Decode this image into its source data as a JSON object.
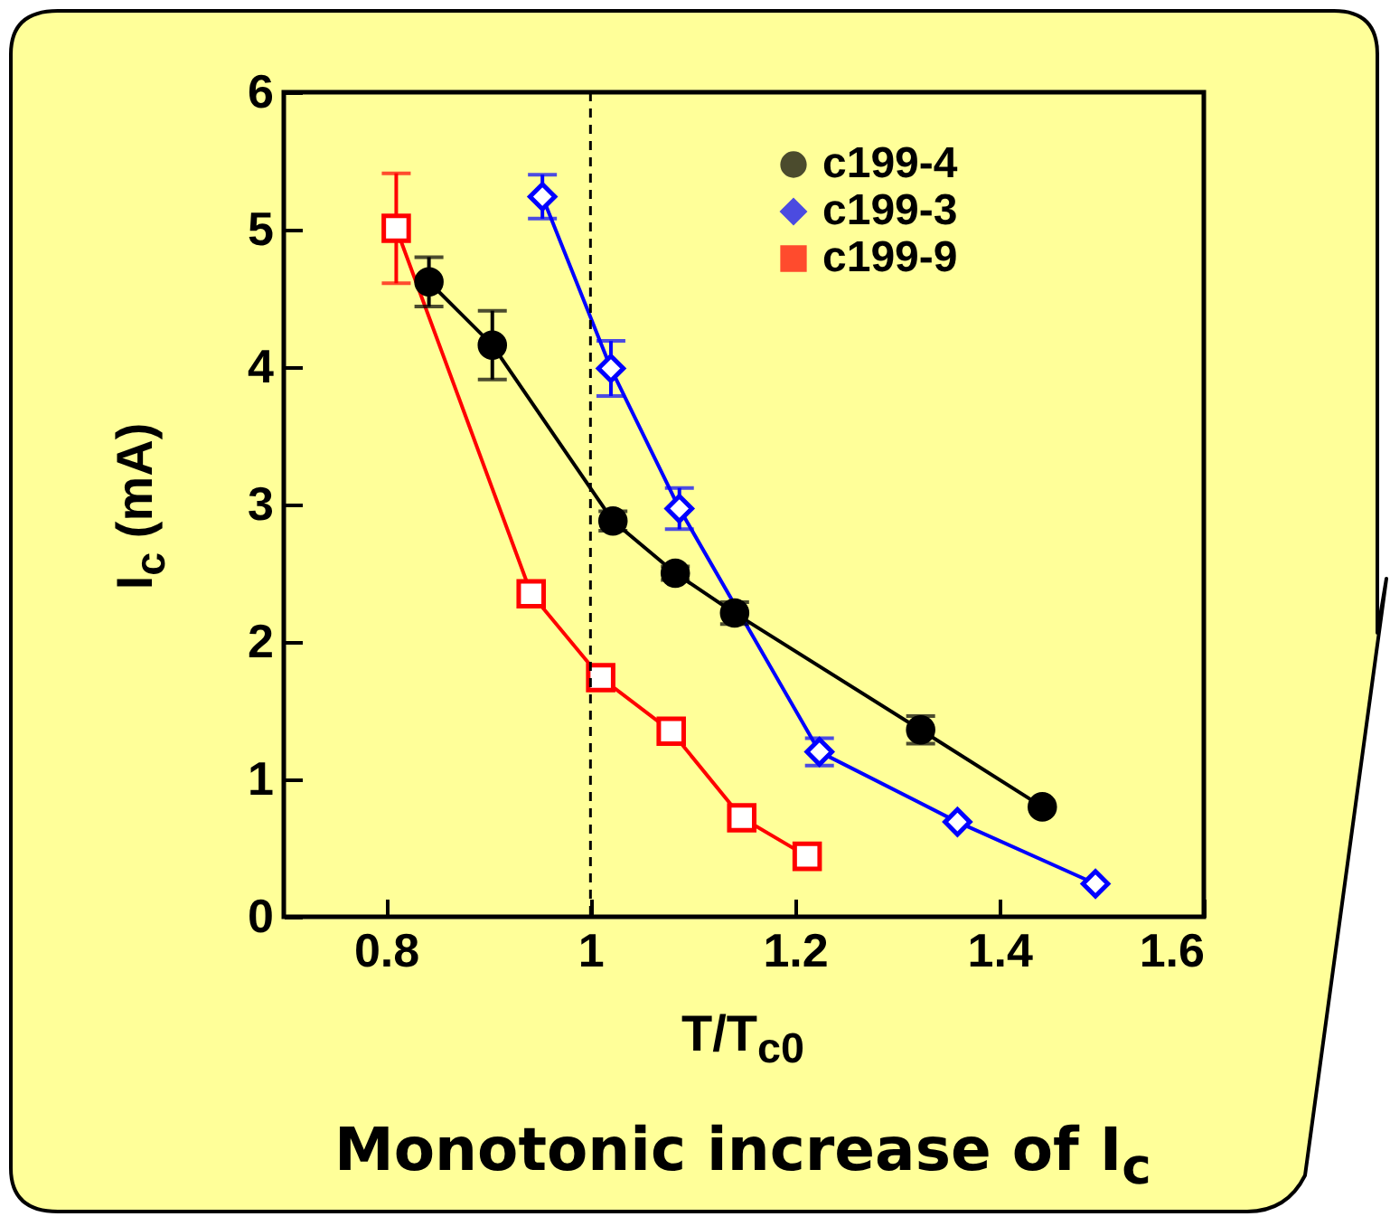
{
  "chart_data": {
    "type": "line",
    "xlabel": "T/T$_{c0}$",
    "ylabel": "I$_{c}$ (mA)",
    "xlim": [
      0.7,
      1.6
    ],
    "xticks": [
      0.8,
      1,
      1.2,
      1.4,
      1.6
    ],
    "ylim": [
      0,
      6
    ],
    "yticks": [
      0,
      1,
      2,
      3,
      4,
      5,
      6
    ],
    "grid": false,
    "legend": "top right",
    "ref_lines": [
      {
        "axis": "x",
        "value": 1,
        "color": "#000000",
        "line_style": "dashed"
      }
    ],
    "annotations": [
      "Monotonic increase of I$_{c}$"
    ],
    "series": [
      {
        "name": "c199-4",
        "color": "#000000",
        "marker": "circle",
        "x": [
          0.842,
          0.904,
          1.022,
          1.083,
          1.141,
          1.323,
          1.442
        ],
        "values": [
          4.62,
          4.16,
          2.88,
          2.5,
          2.21,
          1.36,
          0.8
        ],
        "errors": [
          0.18,
          0.25,
          0.07,
          0.05,
          0.08,
          0.1,
          null
        ]
      },
      {
        "name": "c199-3",
        "color": "#0000ff",
        "marker": "diamond",
        "x": [
          0.953,
          1.02,
          1.087,
          1.224,
          1.359,
          1.494
        ],
        "values": [
          5.24,
          3.99,
          2.97,
          1.2,
          0.69,
          0.24
        ],
        "errors": [
          0.16,
          0.2,
          0.15,
          0.1,
          null,
          null
        ]
      },
      {
        "name": "c199-9",
        "color": "#ff0000",
        "marker": "square",
        "x": [
          0.81,
          0.942,
          1.01,
          1.079,
          1.148,
          1.212
        ],
        "values": [
          5.01,
          2.35,
          1.74,
          1.35,
          0.72,
          0.44
        ],
        "errors": [
          0.4,
          null,
          null,
          null,
          null,
          null
        ]
      }
    ]
  }
}
